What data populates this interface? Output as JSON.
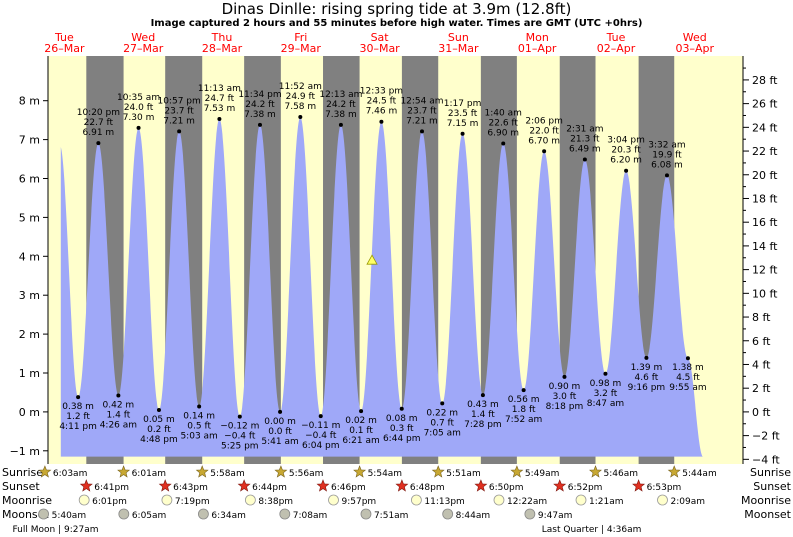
{
  "title": "Dinas Dinlle: rising  spring tide at 3.9m (12.8ft)",
  "subtitle": "Image captured 2 hours and 55 minutes before high water. Times are GMT (UTC +0hrs)",
  "colors": {
    "night": "#808080",
    "day": "#ffffcc",
    "tide_fill": "#9fa8f8",
    "date_label": "#ff0000",
    "current_marker": "#ffff66"
  },
  "days": [
    {
      "dow": "Tue",
      "date": "26–Mar"
    },
    {
      "dow": "Wed",
      "date": "27–Mar"
    },
    {
      "dow": "Thu",
      "date": "28–Mar"
    },
    {
      "dow": "Fri",
      "date": "29–Mar"
    },
    {
      "dow": "Sat",
      "date": "30–Mar"
    },
    {
      "dow": "Sun",
      "date": "31–Mar"
    },
    {
      "dow": "Mon",
      "date": "01–Apr"
    },
    {
      "dow": "Tue",
      "date": "02–Apr"
    },
    {
      "dow": "Wed",
      "date": "03–Apr"
    }
  ],
  "chart_data": {
    "type": "area",
    "x_unit": "days from 26-Mar 00:00 GMT",
    "ylabel_left": "m",
    "ylabel_right": "ft",
    "ylim_m": [
      -1.25,
      8.7
    ],
    "left_ticks": [
      "−1 m",
      "0 m",
      "1 m",
      "2 m",
      "3 m",
      "4 m",
      "5 m",
      "6 m",
      "7 m",
      "8 m"
    ],
    "right_ticks": [
      "−4 ft",
      "−2 ft",
      "0 ft",
      "2 ft",
      "4 ft",
      "6 ft",
      "8 ft",
      "10 ft",
      "12 ft",
      "14 ft",
      "16 ft",
      "18 ft",
      "20 ft",
      "22 ft",
      "24 ft",
      "26 ft",
      "28 ft"
    ],
    "series_start": {
      "time": "26-Mar ~10:55",
      "height_m": 6.85
    },
    "series_end": {
      "time": "03-Apr ~14:30",
      "height_m": -1.15
    },
    "extremes": [
      {
        "type": "low",
        "time": "4:11 pm",
        "ft": "1.2 ft",
        "m": "0.38 m",
        "x": 0.674,
        "h": 0.38
      },
      {
        "type": "high",
        "time": "10:20 pm",
        "ft": "22.7 ft",
        "m": "6.91 m",
        "x": 0.931,
        "h": 6.91
      },
      {
        "type": "low",
        "time": "4:26 am",
        "ft": "1.4 ft",
        "m": "0.42 m",
        "x": 1.185,
        "h": 0.42
      },
      {
        "type": "high",
        "time": "10:35 am",
        "ft": "24.0 ft",
        "m": "7.30 m",
        "x": 1.441,
        "h": 7.3
      },
      {
        "type": "low",
        "time": "4:48 pm",
        "ft": "0.2 ft",
        "m": "0.05 m",
        "x": 1.7,
        "h": 0.05
      },
      {
        "type": "high",
        "time": "10:57 pm",
        "ft": "23.7 ft",
        "m": "7.21 m",
        "x": 1.956,
        "h": 7.21
      },
      {
        "type": "low",
        "time": "5:03 am",
        "ft": "0.5 ft",
        "m": "0.14 m",
        "x": 2.21,
        "h": 0.14
      },
      {
        "type": "high",
        "time": "11:13 am",
        "ft": "24.7 ft",
        "m": "7.53 m",
        "x": 2.467,
        "h": 7.53
      },
      {
        "type": "low",
        "time": "5:25 pm",
        "ft": "−0.4 ft",
        "m": "−0.12 m",
        "x": 2.726,
        "h": -0.12
      },
      {
        "type": "high",
        "time": "11:34 pm",
        "ft": "24.2 ft",
        "m": "7.38 m",
        "x": 2.982,
        "h": 7.38
      },
      {
        "type": "low",
        "time": "5:41 am",
        "ft": "0.0 ft",
        "m": "0.00 m",
        "x": 3.237,
        "h": 0.0
      },
      {
        "type": "high",
        "time": "11:52 am",
        "ft": "24.9 ft",
        "m": "7.58 m",
        "x": 3.494,
        "h": 7.58
      },
      {
        "type": "low",
        "time": "6:04 pm",
        "ft": "−0.4 ft",
        "m": "−0.11 m",
        "x": 3.753,
        "h": -0.11
      },
      {
        "type": "high",
        "time": "12:13 am",
        "ft": "24.2 ft",
        "m": "7.38 m",
        "x": 4.009,
        "h": 7.38
      },
      {
        "type": "low",
        "time": "6:21 am",
        "ft": "0.1 ft",
        "m": "0.02 m",
        "x": 4.265,
        "h": 0.02
      },
      {
        "type": "high",
        "time": "12:33 pm",
        "ft": "24.5 ft",
        "m": "7.46 m",
        "x": 4.523,
        "h": 7.46
      },
      {
        "type": "low",
        "time": "6:44 pm",
        "ft": "0.3 ft",
        "m": "0.08 m",
        "x": 4.781,
        "h": 0.08
      },
      {
        "type": "high",
        "time": "12:54 am",
        "ft": "23.7 ft",
        "m": "7.21 m",
        "x": 5.038,
        "h": 7.21
      },
      {
        "type": "low",
        "time": "7:05 am",
        "ft": "0.7 ft",
        "m": "0.22 m",
        "x": 5.295,
        "h": 0.22
      },
      {
        "type": "high",
        "time": "1:17 pm",
        "ft": "23.5 ft",
        "m": "7.15 m",
        "x": 5.553,
        "h": 7.15
      },
      {
        "type": "low",
        "time": "7:28 pm",
        "ft": "1.4 ft",
        "m": "0.43 m",
        "x": 5.811,
        "h": 0.43
      },
      {
        "type": "high",
        "time": "1:40 am",
        "ft": "22.6 ft",
        "m": "6.90 m",
        "x": 6.069,
        "h": 6.9
      },
      {
        "type": "low",
        "time": "7:52 am",
        "ft": "1.8 ft",
        "m": "0.56 m",
        "x": 6.328,
        "h": 0.56
      },
      {
        "type": "high",
        "time": "2:06 pm",
        "ft": "22.0 ft",
        "m": "6.70 m",
        "x": 6.588,
        "h": 6.7
      },
      {
        "type": "low",
        "time": "8:18 pm",
        "ft": "3.0 ft",
        "m": "0.90 m",
        "x": 6.846,
        "h": 0.9
      },
      {
        "type": "high",
        "time": "2:31 am",
        "ft": "21.3 ft",
        "m": "6.49 m",
        "x": 7.105,
        "h": 6.49
      },
      {
        "type": "low",
        "time": "8:47 am",
        "ft": "3.2 ft",
        "m": "0.98 m",
        "x": 7.366,
        "h": 0.98
      },
      {
        "type": "high",
        "time": "3:04 pm",
        "ft": "20.3 ft",
        "m": "6.20 m",
        "x": 7.628,
        "h": 6.2
      },
      {
        "type": "low",
        "time": "9:16 pm",
        "ft": "4.6 ft",
        "m": "1.39 m",
        "x": 7.886,
        "h": 1.39
      },
      {
        "type": "high",
        "time": "3:32 am",
        "ft": "19.9 ft",
        "m": "6.08 m",
        "x": 8.147,
        "h": 6.08
      },
      {
        "type": "low",
        "time": "9:55 am",
        "ft": "4.5 ft",
        "m": "1.38 m",
        "x": 8.413,
        "h": 1.38
      }
    ],
    "current": {
      "x": 4.404,
      "h": 3.9
    }
  },
  "rows": {
    "labels": {
      "sunrise": "Sunrise",
      "sunset": "Sunset",
      "moonrise": "Moonrise",
      "moonset": "Moonset"
    },
    "sunrise": [
      {
        "x": 0.252,
        "t": "6:03am"
      },
      {
        "x": 1.251,
        "t": "6:01am"
      },
      {
        "x": 2.249,
        "t": "5:58am"
      },
      {
        "x": 3.247,
        "t": "5:56am"
      },
      {
        "x": 4.246,
        "t": "5:54am"
      },
      {
        "x": 5.244,
        "t": "5:51am"
      },
      {
        "x": 6.242,
        "t": "5:49am"
      },
      {
        "x": 7.24,
        "t": "5:46am"
      },
      {
        "x": 8.239,
        "t": "5:44am"
      }
    ],
    "sunset": [
      {
        "x": 0.778,
        "t": "6:41pm"
      },
      {
        "x": 1.779,
        "t": "6:43pm"
      },
      {
        "x": 2.781,
        "t": "6:44pm"
      },
      {
        "x": 3.782,
        "t": "6:46pm"
      },
      {
        "x": 4.783,
        "t": "6:48pm"
      },
      {
        "x": 5.785,
        "t": "6:50pm"
      },
      {
        "x": 6.786,
        "t": "6:52pm"
      },
      {
        "x": 7.787,
        "t": "6:53pm"
      }
    ],
    "moonrise": [
      {
        "x": 0.751,
        "t": "6:01pm"
      },
      {
        "x": 1.801,
        "t": "7:19pm"
      },
      {
        "x": 2.86,
        "t": "8:38pm"
      },
      {
        "x": 3.915,
        "t": "9:57pm"
      },
      {
        "x": 4.967,
        "t": "11:13pm"
      },
      {
        "x": 6.015,
        "t": "12:22am"
      },
      {
        "x": 7.056,
        "t": "1:21am"
      },
      {
        "x": 8.09,
        "t": "2:09am"
      }
    ],
    "moonset": [
      {
        "x": 0.236,
        "t": "5:40am"
      },
      {
        "x": 1.254,
        "t": "6:05am"
      },
      {
        "x": 2.264,
        "t": "6:34am"
      },
      {
        "x": 3.297,
        "t": "7:08am"
      },
      {
        "x": 4.327,
        "t": "7:51am"
      },
      {
        "x": 5.364,
        "t": "8:44am"
      },
      {
        "x": 6.407,
        "t": "9:47am"
      }
    ],
    "moon_phases": [
      {
        "x": 0.387,
        "t": "Full Moon | 9:27am"
      },
      {
        "x": 7.19,
        "t": "Last Quarter | 4:36am"
      }
    ]
  }
}
